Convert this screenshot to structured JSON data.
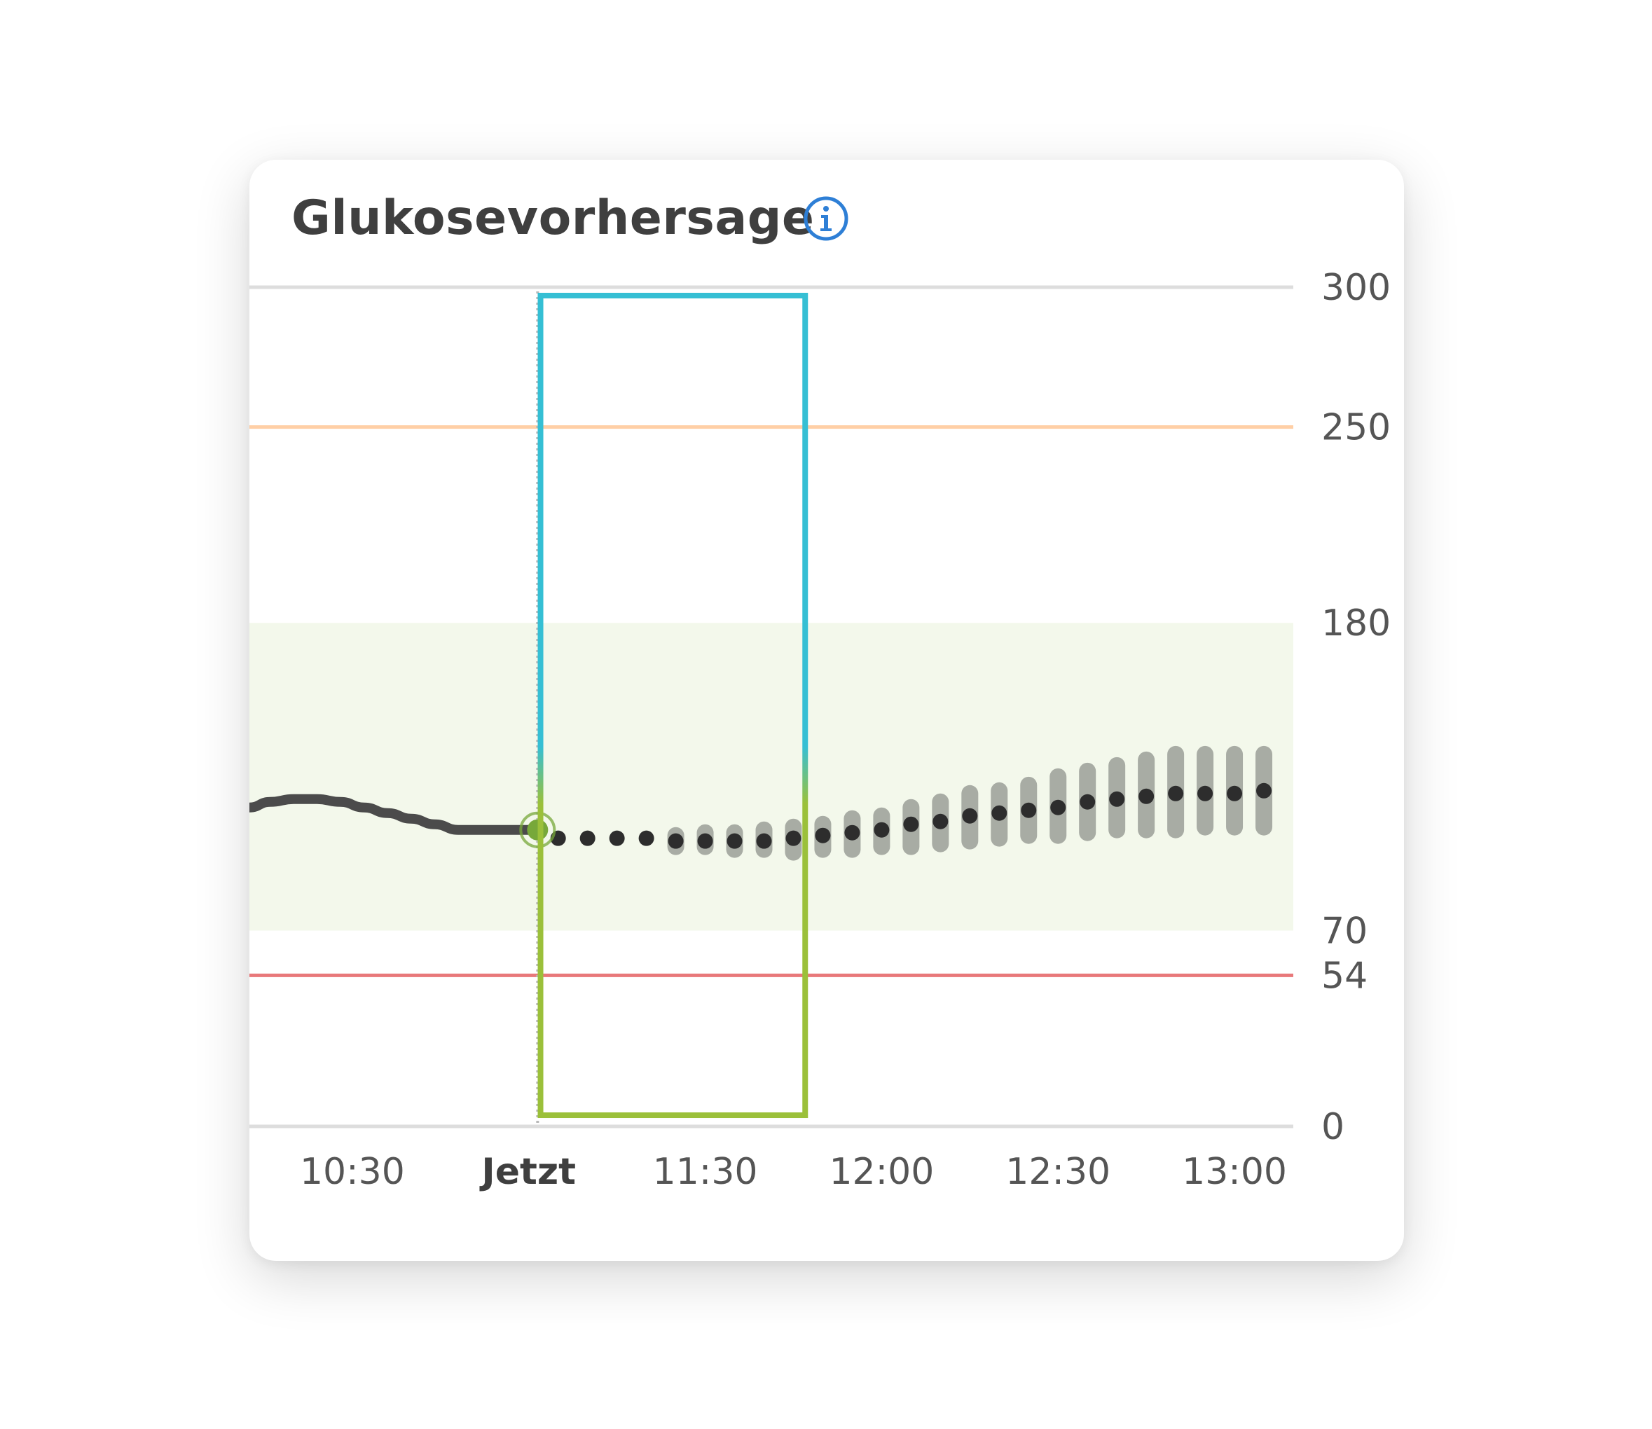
{
  "widget": {
    "title": "Glukosevorhersage",
    "info_icon": "info-circle-icon"
  },
  "chart_data": {
    "type": "line",
    "y_ticks": [
      "300",
      "250",
      "180",
      "70",
      "54",
      "0"
    ],
    "y_tick_values": [
      300,
      250,
      180,
      70,
      54,
      0
    ],
    "ylim": [
      0,
      300
    ],
    "x_ticks": [
      "10:30",
      "Jetzt",
      "11:30",
      "12:00",
      "12:30",
      "13:00"
    ],
    "x_tick_values": [
      630,
      660,
      690,
      720,
      750,
      780
    ],
    "xlim": [
      612.5,
      790
    ],
    "now_minutes": 661.5,
    "target_range": [
      70,
      180
    ],
    "thresholds": [
      {
        "value": 250,
        "color": "#ffcfa6"
      },
      {
        "value": 54,
        "color": "#e8787a"
      }
    ],
    "colors": {
      "target_band": "#f3f8eb",
      "history_line": "#4b4b4b",
      "current_point": "#77a83a",
      "forecast_dot": "#2d2d2d",
      "forecast_range": "#a8aca4",
      "highlight_top": "#35bfd4",
      "highlight_bottom": "#9bc03a",
      "grid": "#dddddd",
      "tick_text": "#555555"
    },
    "history": {
      "x": [
        612.5,
        616,
        620,
        624,
        628,
        632,
        636,
        640,
        644,
        648,
        652,
        656,
        660,
        661.5
      ],
      "y": [
        114,
        116,
        117,
        117,
        116,
        114,
        112,
        110,
        108,
        106,
        106,
        106,
        106,
        106
      ]
    },
    "current": {
      "x": 661.5,
      "y": 106
    },
    "forecast": {
      "x": [
        665,
        670,
        675,
        680,
        685,
        690,
        695,
        700,
        705,
        710,
        715,
        720,
        725,
        730,
        735,
        740,
        745,
        750,
        755,
        760,
        765,
        770,
        775,
        780,
        785
      ],
      "y": [
        103,
        103,
        103,
        103,
        102,
        102,
        102,
        102,
        103,
        104,
        105,
        106,
        108,
        109,
        111,
        112,
        113,
        114,
        116,
        117,
        118,
        119,
        119,
        119,
        120
      ],
      "low": [
        103,
        103,
        103,
        103,
        100,
        100,
        99,
        99,
        98,
        99,
        99,
        100,
        100,
        101,
        102,
        103,
        104,
        104,
        105,
        106,
        106,
        106,
        107,
        107,
        107
      ],
      "high": [
        103,
        103,
        103,
        103,
        104,
        105,
        105,
        106,
        107,
        108,
        110,
        111,
        114,
        116,
        119,
        120,
        122,
        125,
        127,
        129,
        131,
        133,
        133,
        133,
        133
      ]
    },
    "highlight_window": {
      "x_start": 662,
      "x_end": 707,
      "y_start": 4,
      "y_end": 297
    }
  }
}
